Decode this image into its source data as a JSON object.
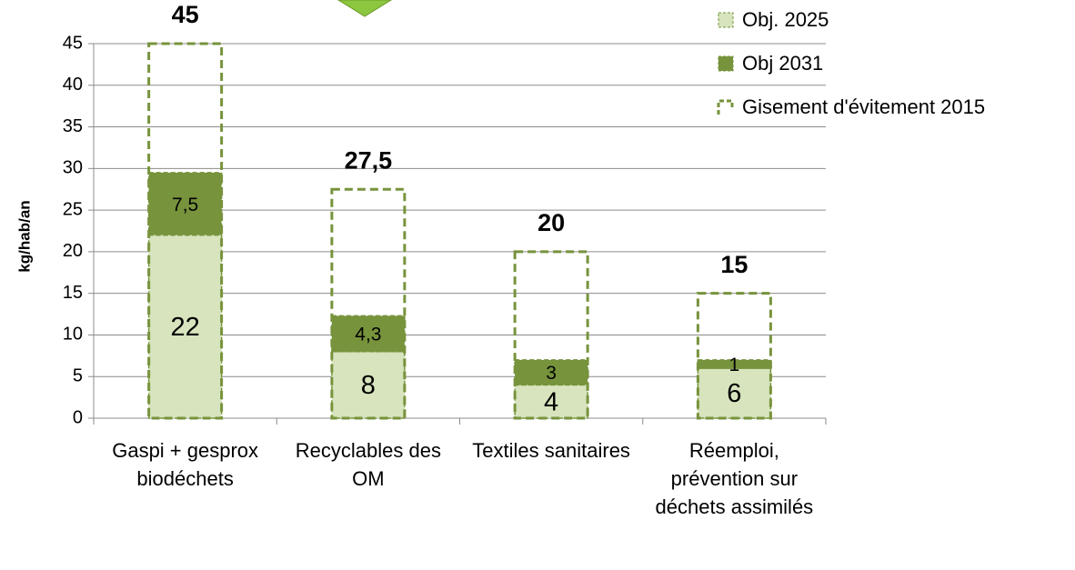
{
  "chart_data": {
    "type": "bar",
    "y_label": "kg/hab/an",
    "categories": [
      "Gaspi + gesprox biodéchets",
      "Recyclables des OM",
      "Textiles sanitaires",
      "Réemploi, prévention sur déchets assimilés"
    ],
    "series": [
      {
        "name": "Obj. 2025",
        "color": "#d7e4bd",
        "values": [
          22,
          8,
          4,
          6
        ]
      },
      {
        "name": "Obj 2031",
        "color": "#77933c",
        "values": [
          7.5,
          4.3,
          3,
          1
        ],
        "value_labels": [
          "7,5",
          "4,3",
          "3",
          "1"
        ]
      },
      {
        "name": "Gisement d'évitement 2015",
        "color": "#77933c",
        "style": "dashed-outline",
        "values": [
          45,
          27.5,
          20,
          15
        ],
        "value_labels": [
          "45",
          "27,5",
          "20",
          "15"
        ]
      }
    ],
    "ylim": [
      0,
      45
    ],
    "yticks": [
      0,
      5,
      10,
      15,
      20,
      25,
      30,
      35,
      40,
      45
    ],
    "grid": true,
    "legend": "top-right"
  }
}
